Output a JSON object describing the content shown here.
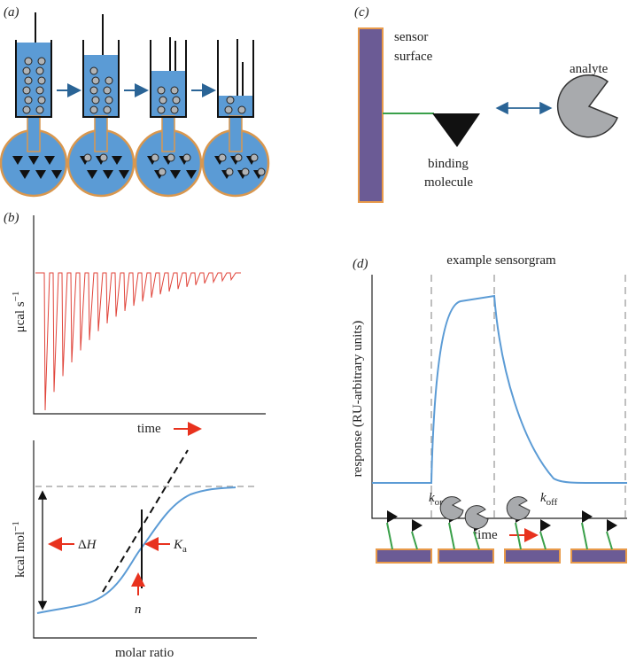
{
  "panels": {
    "a": "(a)",
    "b": "(b)",
    "c": "(c)",
    "d": "(d)"
  },
  "itc": {
    "y_label_top": {
      "main": "μcal s",
      "sup": "−1"
    },
    "x_label_top": "time",
    "y_label_bottom": {
      "main": "kcal mol",
      "sup": "−1"
    },
    "x_label_bottom": "molar ratio",
    "delta_h": {
      "symbol": "Δ",
      "var": "H"
    },
    "ka": {
      "main": "K",
      "sub": "a"
    },
    "n": "n"
  },
  "spr": {
    "sensor_surface": [
      "sensor",
      "surface"
    ],
    "binding_molecule": [
      "binding",
      "molecule"
    ],
    "analyte": "analyte",
    "sensorgram_title": "example sensorgram",
    "y_label": "response (RU-arbitrary units)",
    "kon": {
      "main": "k",
      "sub": "on"
    },
    "koff": {
      "main": "k",
      "sub": "off"
    },
    "x_label": "time"
  }
}
